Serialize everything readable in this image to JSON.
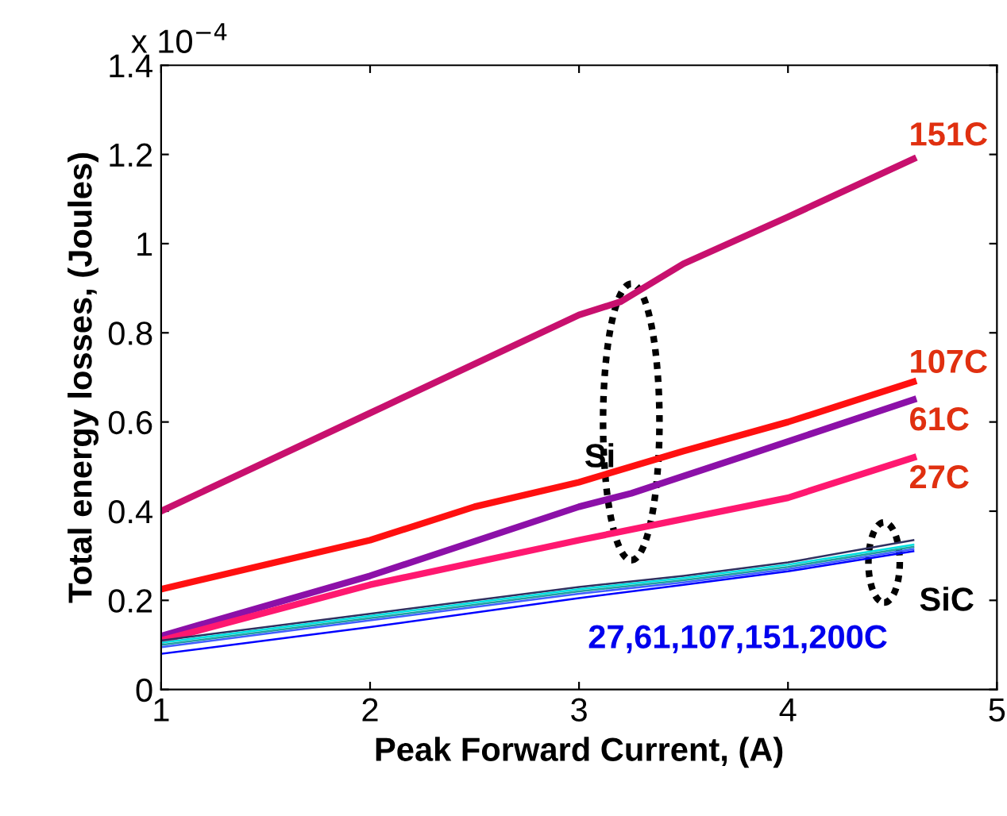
{
  "chart_data": {
    "type": "line",
    "xlabel": "Peak Forward Current, (A)",
    "ylabel": "Total energy losses, (Joules)",
    "xlim": [
      1,
      5
    ],
    "xticks": [
      1,
      2,
      3,
      4,
      5
    ],
    "ylim": [
      0,
      1.4
    ],
    "yticks": [
      0,
      0.2,
      0.4,
      0.6,
      0.8,
      1,
      1.2,
      1.4
    ],
    "grid": false,
    "legend": false,
    "marker": "none",
    "line_style": "solid",
    "series": [
      {
        "name": "151C",
        "color": "#c8106e",
        "x": [
          1,
          2,
          3,
          3.2,
          3.5,
          4,
          4.6
        ],
        "values": [
          0.4,
          0.62,
          0.84,
          0.87,
          0.955,
          1.06,
          1.19
        ]
      },
      {
        "name": "107C",
        "color": "#ff1010",
        "x": [
          1,
          2,
          2.5,
          3,
          3.5,
          4,
          4.6
        ],
        "values": [
          0.225,
          0.335,
          0.41,
          0.465,
          0.535,
          0.6,
          0.69
        ]
      },
      {
        "name": "61C",
        "color": "#8c10a8",
        "x": [
          1,
          2,
          3,
          3.25,
          3.8,
          4.6
        ],
        "values": [
          0.12,
          0.255,
          0.41,
          0.44,
          0.525,
          0.65
        ]
      },
      {
        "name": "27C",
        "color": "#ff1870",
        "x": [
          1,
          2,
          3,
          4,
          4.6
        ],
        "values": [
          0.11,
          0.235,
          0.335,
          0.43,
          0.52
        ]
      },
      {
        "color": "#303060",
        "x": [
          1,
          2,
          3,
          3.5,
          4,
          4.6
        ],
        "values": [
          0.11,
          0.17,
          0.23,
          0.255,
          0.285,
          0.335
        ]
      },
      {
        "color": "#00e0e0",
        "x": [
          1,
          2,
          3,
          3.5,
          4,
          4.6
        ],
        "values": [
          0.105,
          0.165,
          0.225,
          0.25,
          0.28,
          0.325
        ]
      },
      {
        "color": "#20a0a0",
        "x": [
          1,
          2,
          3,
          3.5,
          4,
          4.6
        ],
        "values": [
          0.1,
          0.16,
          0.22,
          0.245,
          0.275,
          0.32
        ]
      },
      {
        "color": "#4060ff",
        "x": [
          1,
          2,
          3,
          3.5,
          4,
          4.6
        ],
        "values": [
          0.095,
          0.155,
          0.215,
          0.24,
          0.27,
          0.315
        ]
      },
      {
        "color": "#0000ff",
        "x": [
          1,
          2,
          3,
          3.5,
          4,
          4.6
        ],
        "values": [
          0.08,
          0.14,
          0.205,
          0.235,
          0.265,
          0.31
        ]
      }
    ],
    "annotations": [
      "x 10$^{−4}$",
      "Si",
      "SiC",
      "27,61,107,151,200C"
    ]
  }
}
